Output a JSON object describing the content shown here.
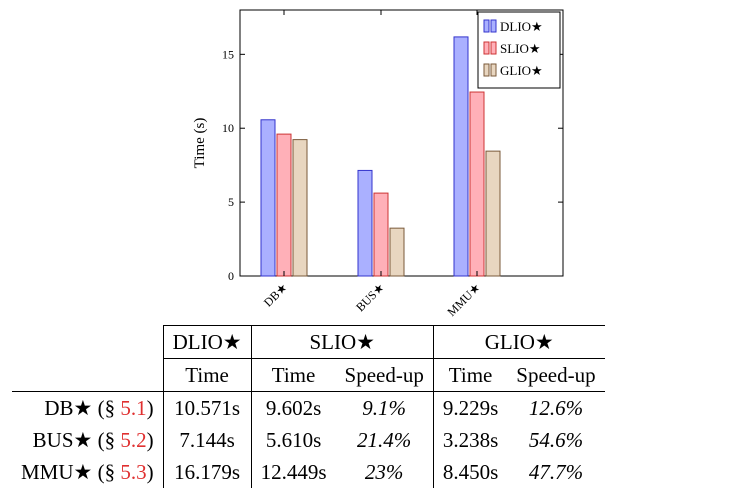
{
  "chart_data": {
    "type": "bar",
    "categories": [
      "DB★",
      "BUS★",
      "MMU★"
    ],
    "series": [
      {
        "name": "DLIO★",
        "values": [
          10.571,
          7.144,
          16.179
        ],
        "color": "#aab0ff",
        "stroke": "#3333cc"
      },
      {
        "name": "SLIO★",
        "values": [
          9.602,
          5.61,
          12.449
        ],
        "color": "#ffb0b8",
        "stroke": "#cc3333"
      },
      {
        "name": "GLIO★",
        "values": [
          9.229,
          3.238,
          8.45
        ],
        "color": "#e8d6c0",
        "stroke": "#7a5a3a"
      }
    ],
    "ylabel": "Time (s)",
    "ylim": [
      0,
      18
    ],
    "yticks": [
      0,
      5,
      10,
      15
    ],
    "grid": false,
    "legend": "top-right"
  },
  "table": {
    "groups": [
      "DLIO★",
      "SLIO★",
      "GLIO★"
    ],
    "subheaders": [
      "Time",
      "Time",
      "Speed-up",
      "Time",
      "Speed-up"
    ],
    "rows": [
      {
        "name": "DB★",
        "ref": "5.1",
        "dlio_time": "10.571s",
        "slio_time": "9.602s",
        "slio_speedup": "9.1%",
        "glio_time": "9.229s",
        "glio_speedup": "12.6%"
      },
      {
        "name": "BUS★",
        "ref": "5.2",
        "dlio_time": "7.144s",
        "slio_time": "5.610s",
        "slio_speedup": "21.4%",
        "glio_time": "3.238s",
        "glio_speedup": "54.6%"
      },
      {
        "name": "MMU★",
        "ref": "5.3",
        "dlio_time": "16.179s",
        "slio_time": "12.449s",
        "slio_speedup": "23%",
        "glio_time": "8.450s",
        "glio_speedup": "47.7%"
      }
    ]
  }
}
